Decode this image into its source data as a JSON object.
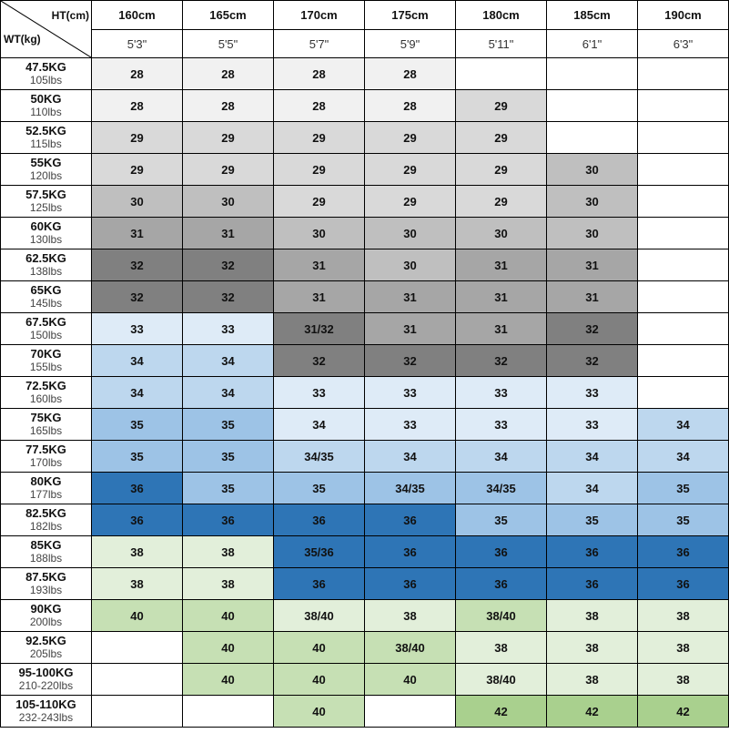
{
  "corner": {
    "height_label": "HT(cm)",
    "weight_label": "WT(kg)"
  },
  "colors": {
    "white": "#ffffff",
    "g1": "#f1f1f1",
    "g2": "#d9d9d9",
    "g3": "#bfbfbf",
    "g4": "#a6a6a6",
    "g5": "#808080",
    "b1": "#deebf7",
    "b2": "#bdd7ee",
    "b3": "#9dc3e6",
    "b4": "#2e75b6",
    "gr1": "#e2efda",
    "gr2": "#c6e0b4",
    "gr3": "#a9d08e"
  },
  "heights_cm": [
    "160cm",
    "165cm",
    "170cm",
    "175cm",
    "180cm",
    "185cm",
    "190cm"
  ],
  "heights_ft": [
    "5'3\"",
    "5'5\"",
    "5'7\"",
    "5'9\"",
    "5'11\"",
    "6'1\"",
    "6'3\""
  ],
  "rows": [
    {
      "kg": "47.5KG",
      "lbs": "105lbs",
      "cells": [
        {
          "v": "28",
          "c": "g1"
        },
        {
          "v": "28",
          "c": "g1"
        },
        {
          "v": "28",
          "c": "g1"
        },
        {
          "v": "28",
          "c": "g1"
        },
        {
          "v": "",
          "c": "white"
        },
        {
          "v": "",
          "c": "white"
        },
        {
          "v": "",
          "c": "white"
        }
      ]
    },
    {
      "kg": "50KG",
      "lbs": "110lbs",
      "cells": [
        {
          "v": "28",
          "c": "g1"
        },
        {
          "v": "28",
          "c": "g1"
        },
        {
          "v": "28",
          "c": "g1"
        },
        {
          "v": "28",
          "c": "g1"
        },
        {
          "v": "29",
          "c": "g2"
        },
        {
          "v": "",
          "c": "white"
        },
        {
          "v": "",
          "c": "white"
        }
      ]
    },
    {
      "kg": "52.5KG",
      "lbs": "115lbs",
      "cells": [
        {
          "v": "29",
          "c": "g2"
        },
        {
          "v": "29",
          "c": "g2"
        },
        {
          "v": "29",
          "c": "g2"
        },
        {
          "v": "29",
          "c": "g2"
        },
        {
          "v": "29",
          "c": "g2"
        },
        {
          "v": "",
          "c": "white"
        },
        {
          "v": "",
          "c": "white"
        }
      ]
    },
    {
      "kg": "55KG",
      "lbs": "120lbs",
      "cells": [
        {
          "v": "29",
          "c": "g2"
        },
        {
          "v": "29",
          "c": "g2"
        },
        {
          "v": "29",
          "c": "g2"
        },
        {
          "v": "29",
          "c": "g2"
        },
        {
          "v": "29",
          "c": "g2"
        },
        {
          "v": "30",
          "c": "g3"
        },
        {
          "v": "",
          "c": "white"
        }
      ]
    },
    {
      "kg": "57.5KG",
      "lbs": "125lbs",
      "cells": [
        {
          "v": "30",
          "c": "g3"
        },
        {
          "v": "30",
          "c": "g3"
        },
        {
          "v": "29",
          "c": "g2"
        },
        {
          "v": "29",
          "c": "g2"
        },
        {
          "v": "29",
          "c": "g2"
        },
        {
          "v": "30",
          "c": "g3"
        },
        {
          "v": "",
          "c": "white"
        }
      ]
    },
    {
      "kg": "60KG",
      "lbs": "130lbs",
      "cells": [
        {
          "v": "31",
          "c": "g4"
        },
        {
          "v": "31",
          "c": "g4"
        },
        {
          "v": "30",
          "c": "g3"
        },
        {
          "v": "30",
          "c": "g3"
        },
        {
          "v": "30",
          "c": "g3"
        },
        {
          "v": "30",
          "c": "g3"
        },
        {
          "v": "",
          "c": "white"
        }
      ]
    },
    {
      "kg": "62.5KG",
      "lbs": "138lbs",
      "cells": [
        {
          "v": "32",
          "c": "g5"
        },
        {
          "v": "32",
          "c": "g5"
        },
        {
          "v": "31",
          "c": "g4"
        },
        {
          "v": "30",
          "c": "g3"
        },
        {
          "v": "31",
          "c": "g4"
        },
        {
          "v": "31",
          "c": "g4"
        },
        {
          "v": "",
          "c": "white"
        }
      ]
    },
    {
      "kg": "65KG",
      "lbs": "145lbs",
      "cells": [
        {
          "v": "32",
          "c": "g5"
        },
        {
          "v": "32",
          "c": "g5"
        },
        {
          "v": "31",
          "c": "g4"
        },
        {
          "v": "31",
          "c": "g4"
        },
        {
          "v": "31",
          "c": "g4"
        },
        {
          "v": "31",
          "c": "g4"
        },
        {
          "v": "",
          "c": "white"
        }
      ]
    },
    {
      "kg": "67.5KG",
      "lbs": "150lbs",
      "cells": [
        {
          "v": "33",
          "c": "b1"
        },
        {
          "v": "33",
          "c": "b1"
        },
        {
          "v": "31/32",
          "c": "g5"
        },
        {
          "v": "31",
          "c": "g4"
        },
        {
          "v": "31",
          "c": "g4"
        },
        {
          "v": "32",
          "c": "g5"
        },
        {
          "v": "",
          "c": "white"
        }
      ]
    },
    {
      "kg": "70KG",
      "lbs": "155lbs",
      "cells": [
        {
          "v": "34",
          "c": "b2"
        },
        {
          "v": "34",
          "c": "b2"
        },
        {
          "v": "32",
          "c": "g5"
        },
        {
          "v": "32",
          "c": "g5"
        },
        {
          "v": "32",
          "c": "g5"
        },
        {
          "v": "32",
          "c": "g5"
        },
        {
          "v": "",
          "c": "white"
        }
      ]
    },
    {
      "kg": "72.5KG",
      "lbs": "160lbs",
      "cells": [
        {
          "v": "34",
          "c": "b2"
        },
        {
          "v": "34",
          "c": "b2"
        },
        {
          "v": "33",
          "c": "b1"
        },
        {
          "v": "33",
          "c": "b1"
        },
        {
          "v": "33",
          "c": "b1"
        },
        {
          "v": "33",
          "c": "b1"
        },
        {
          "v": "",
          "c": "white"
        }
      ]
    },
    {
      "kg": "75KG",
      "lbs": "165lbs",
      "cells": [
        {
          "v": "35",
          "c": "b3"
        },
        {
          "v": "35",
          "c": "b3"
        },
        {
          "v": "34",
          "c": "b1"
        },
        {
          "v": "33",
          "c": "b1"
        },
        {
          "v": "33",
          "c": "b1"
        },
        {
          "v": "33",
          "c": "b1"
        },
        {
          "v": "34",
          "c": "b2"
        }
      ]
    },
    {
      "kg": "77.5KG",
      "lbs": "170lbs",
      "cells": [
        {
          "v": "35",
          "c": "b3"
        },
        {
          "v": "35",
          "c": "b3"
        },
        {
          "v": "34/35",
          "c": "b2"
        },
        {
          "v": "34",
          "c": "b2"
        },
        {
          "v": "34",
          "c": "b2"
        },
        {
          "v": "34",
          "c": "b2"
        },
        {
          "v": "34",
          "c": "b2"
        }
      ]
    },
    {
      "kg": "80KG",
      "lbs": "177lbs",
      "cells": [
        {
          "v": "36",
          "c": "b4"
        },
        {
          "v": "35",
          "c": "b3"
        },
        {
          "v": "35",
          "c": "b3"
        },
        {
          "v": "34/35",
          "c": "b3"
        },
        {
          "v": "34/35",
          "c": "b3"
        },
        {
          "v": "34",
          "c": "b2"
        },
        {
          "v": "35",
          "c": "b3"
        }
      ]
    },
    {
      "kg": "82.5KG",
      "lbs": "182lbs",
      "cells": [
        {
          "v": "36",
          "c": "b4"
        },
        {
          "v": "36",
          "c": "b4"
        },
        {
          "v": "36",
          "c": "b4"
        },
        {
          "v": "36",
          "c": "b4"
        },
        {
          "v": "35",
          "c": "b3"
        },
        {
          "v": "35",
          "c": "b3"
        },
        {
          "v": "35",
          "c": "b3"
        }
      ]
    },
    {
      "kg": "85KG",
      "lbs": "188lbs",
      "cells": [
        {
          "v": "38",
          "c": "gr1"
        },
        {
          "v": "38",
          "c": "gr1"
        },
        {
          "v": "35/36",
          "c": "b4"
        },
        {
          "v": "36",
          "c": "b4"
        },
        {
          "v": "36",
          "c": "b4"
        },
        {
          "v": "36",
          "c": "b4"
        },
        {
          "v": "36",
          "c": "b4"
        }
      ]
    },
    {
      "kg": "87.5KG",
      "lbs": "193lbs",
      "cells": [
        {
          "v": "38",
          "c": "gr1"
        },
        {
          "v": "38",
          "c": "gr1"
        },
        {
          "v": "36",
          "c": "b4"
        },
        {
          "v": "36",
          "c": "b4"
        },
        {
          "v": "36",
          "c": "b4"
        },
        {
          "v": "36",
          "c": "b4"
        },
        {
          "v": "36",
          "c": "b4"
        }
      ]
    },
    {
      "kg": "90KG",
      "lbs": "200lbs",
      "cells": [
        {
          "v": "40",
          "c": "gr2"
        },
        {
          "v": "40",
          "c": "gr2"
        },
        {
          "v": "38/40",
          "c": "gr1"
        },
        {
          "v": "38",
          "c": "gr1"
        },
        {
          "v": "38/40",
          "c": "gr2"
        },
        {
          "v": "38",
          "c": "gr1"
        },
        {
          "v": "38",
          "c": "gr1"
        }
      ]
    },
    {
      "kg": "92.5KG",
      "lbs": "205lbs",
      "cells": [
        {
          "v": "",
          "c": "white"
        },
        {
          "v": "40",
          "c": "gr2"
        },
        {
          "v": "40",
          "c": "gr2"
        },
        {
          "v": "38/40",
          "c": "gr2"
        },
        {
          "v": "38",
          "c": "gr1"
        },
        {
          "v": "38",
          "c": "gr1"
        },
        {
          "v": "38",
          "c": "gr1"
        }
      ]
    },
    {
      "kg": "95-100KG",
      "lbs": "210-220lbs",
      "cells": [
        {
          "v": "",
          "c": "white"
        },
        {
          "v": "40",
          "c": "gr2"
        },
        {
          "v": "40",
          "c": "gr2"
        },
        {
          "v": "40",
          "c": "gr2"
        },
        {
          "v": "38/40",
          "c": "gr1"
        },
        {
          "v": "38",
          "c": "gr1"
        },
        {
          "v": "38",
          "c": "gr1"
        }
      ]
    },
    {
      "kg": "105-110KG",
      "lbs": "232-243lbs",
      "cells": [
        {
          "v": "",
          "c": "white"
        },
        {
          "v": "",
          "c": "white"
        },
        {
          "v": "40",
          "c": "gr2"
        },
        {
          "v": "",
          "c": "white"
        },
        {
          "v": "42",
          "c": "gr3"
        },
        {
          "v": "42",
          "c": "gr3"
        },
        {
          "v": "42",
          "c": "gr3"
        }
      ]
    }
  ]
}
